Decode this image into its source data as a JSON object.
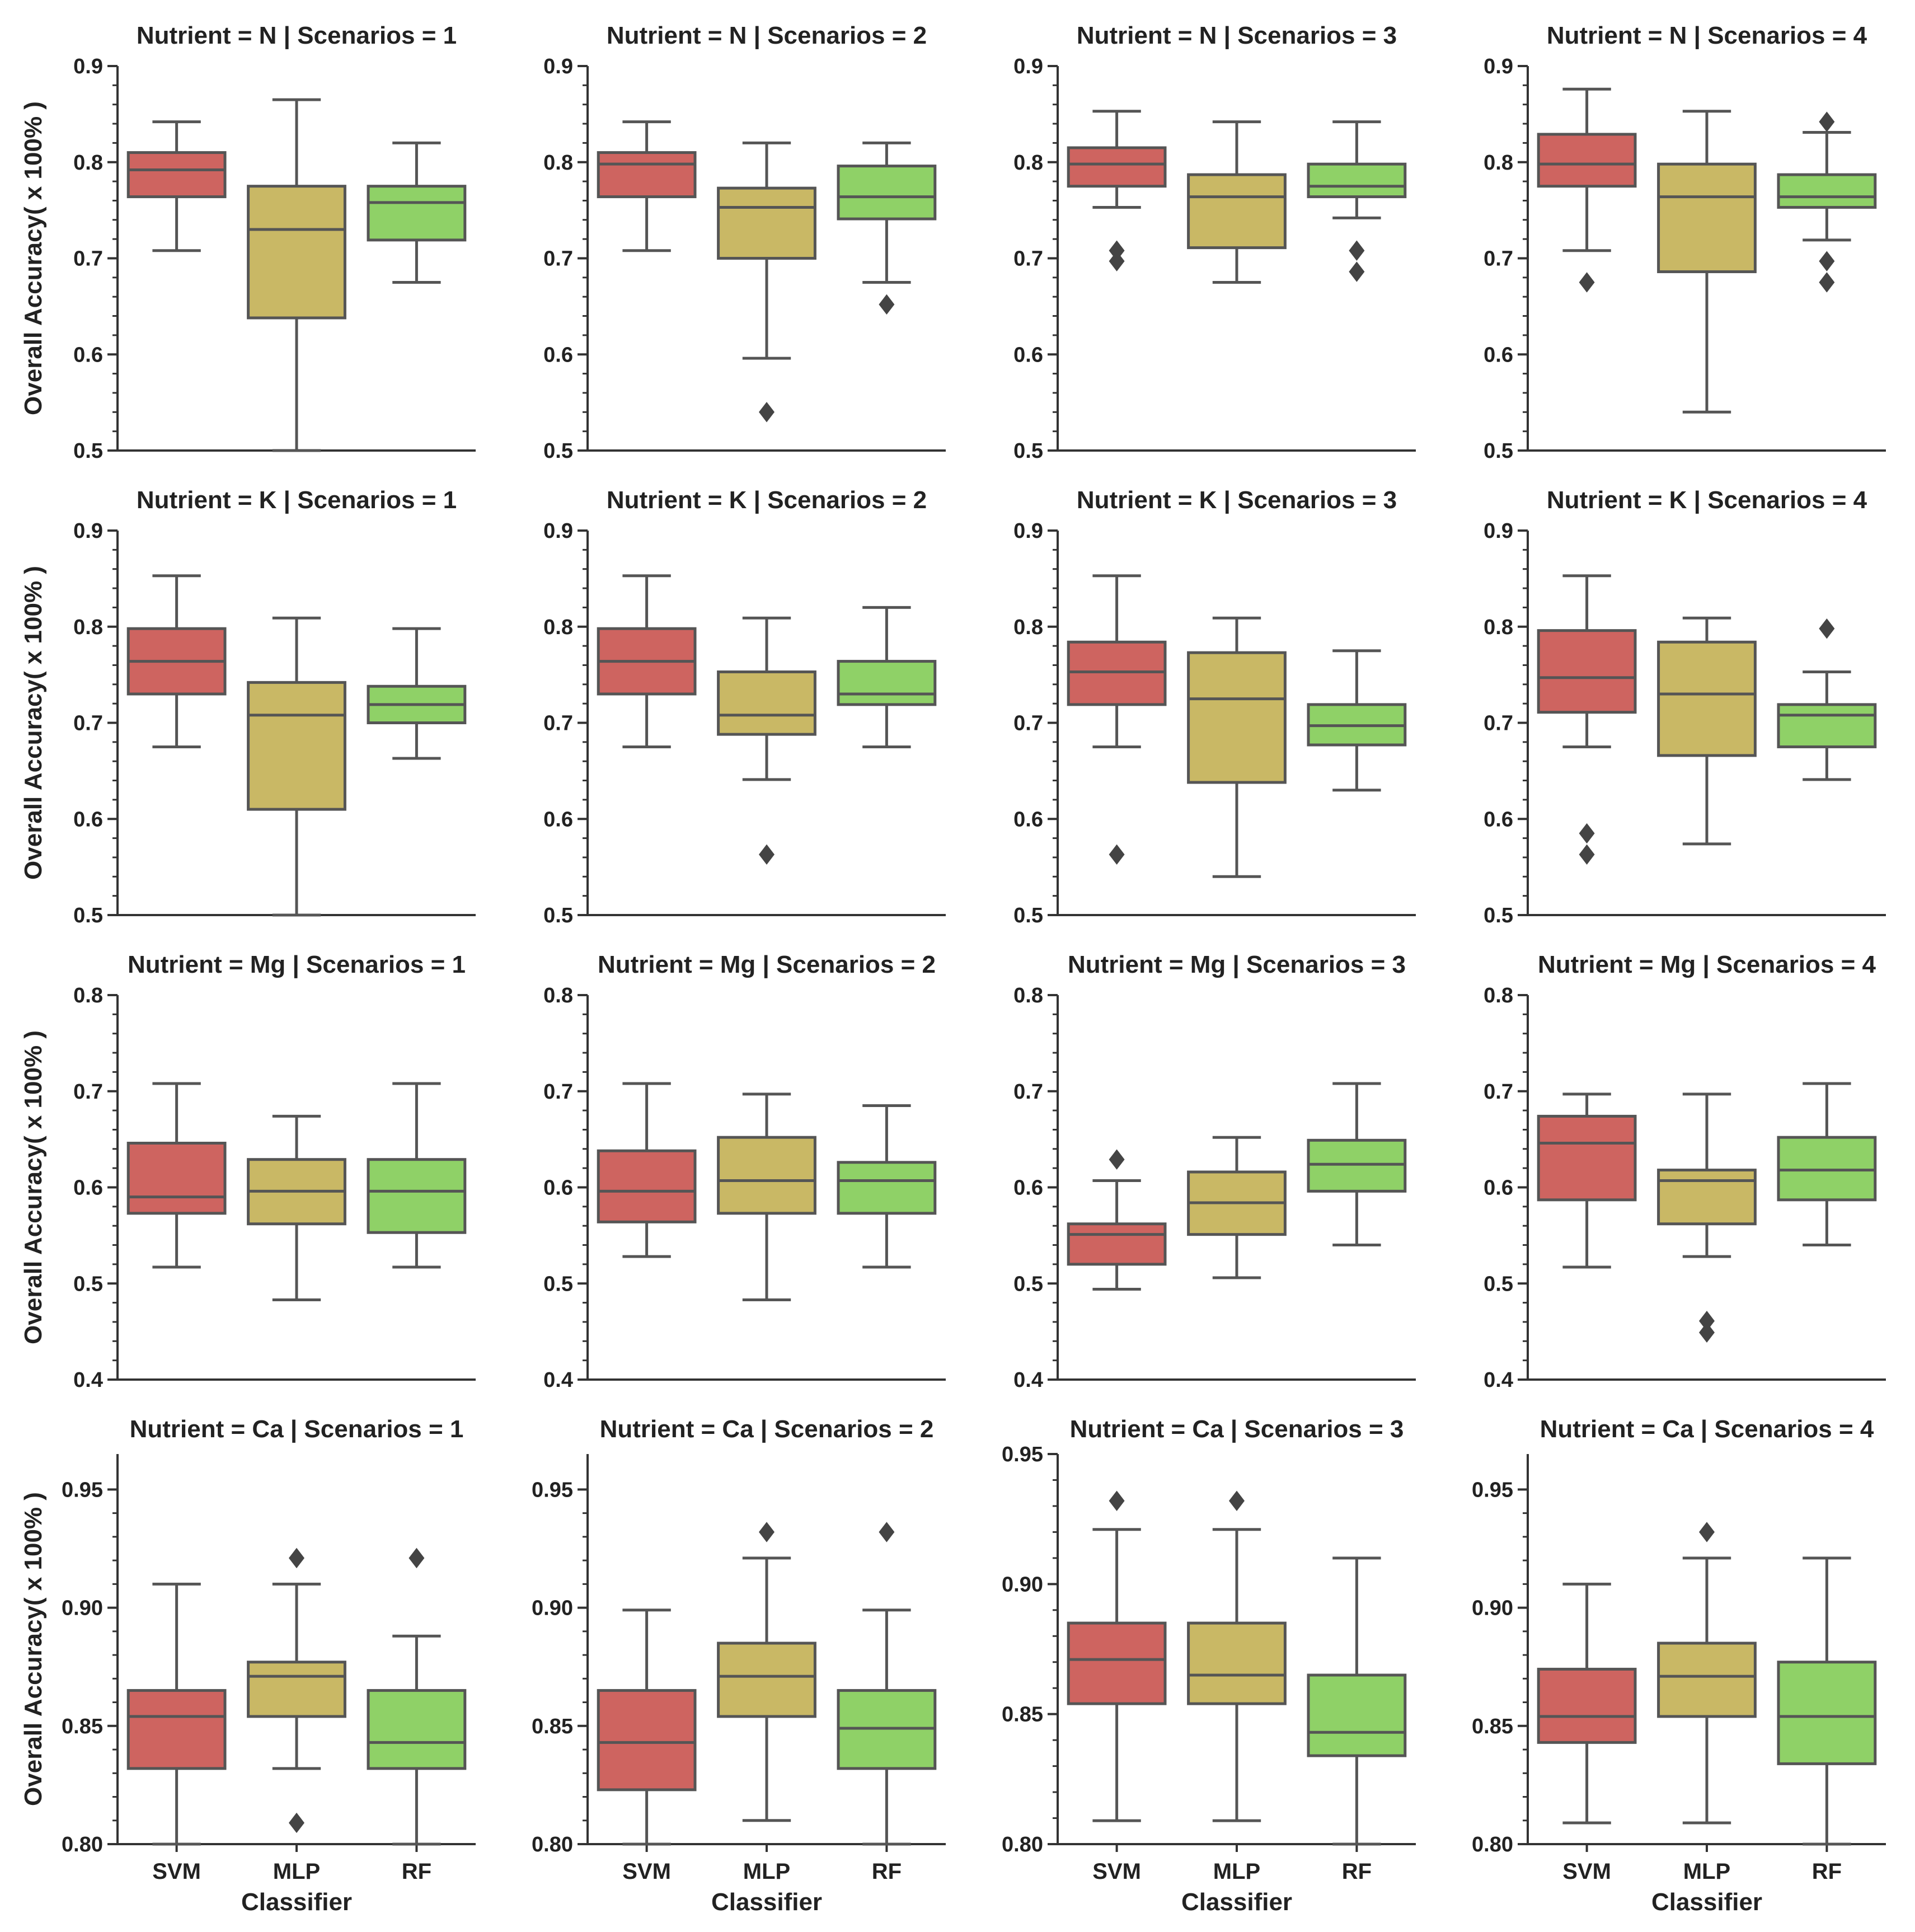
{
  "figure": {
    "ylabel": "Overall Accuracy( x 100% )",
    "xlabel": "Classifier"
  },
  "colors": {
    "SVM": "#ce6460",
    "MLP": "#c9b865",
    "RF": "#8fd167",
    "line": "#555555"
  },
  "chart_data": [
    {
      "type": "box",
      "title": "Nutrient = N | Scenarios = 1",
      "xlabel": "",
      "ylabel": "Overall Accuracy( x 100% )",
      "categories": [
        "SVM",
        "MLP",
        "RF"
      ],
      "ylim": [
        0.5,
        0.9
      ],
      "yticks": [
        "0.5",
        "0.6",
        "0.7",
        "0.8",
        "0.9"
      ],
      "minor_ticks": true,
      "boxes": [
        {
          "whislo": 0.708,
          "q1": 0.764,
          "median": 0.792,
          "q3": 0.81,
          "whishi": 0.842,
          "fliers": []
        },
        {
          "whislo": 0.5,
          "q1": 0.638,
          "median": 0.73,
          "q3": 0.775,
          "whishi": 0.865,
          "fliers": []
        },
        {
          "whislo": 0.675,
          "q1": 0.719,
          "median": 0.758,
          "q3": 0.775,
          "whishi": 0.82,
          "fliers": []
        }
      ]
    },
    {
      "type": "box",
      "title": "Nutrient = N | Scenarios = 2",
      "xlabel": "",
      "ylabel": "",
      "categories": [
        "SVM",
        "MLP",
        "RF"
      ],
      "ylim": [
        0.5,
        0.9
      ],
      "yticks": [
        "0.5",
        "0.6",
        "0.7",
        "0.8",
        "0.9"
      ],
      "minor_ticks": true,
      "boxes": [
        {
          "whislo": 0.708,
          "q1": 0.764,
          "median": 0.798,
          "q3": 0.81,
          "whishi": 0.842,
          "fliers": []
        },
        {
          "whislo": 0.596,
          "q1": 0.7,
          "median": 0.753,
          "q3": 0.773,
          "whishi": 0.82,
          "fliers": [
            0.54
          ]
        },
        {
          "whislo": 0.675,
          "q1": 0.741,
          "median": 0.764,
          "q3": 0.796,
          "whishi": 0.82,
          "fliers": [
            0.652
          ]
        }
      ]
    },
    {
      "type": "box",
      "title": "Nutrient = N | Scenarios = 3",
      "xlabel": "",
      "ylabel": "",
      "categories": [
        "SVM",
        "MLP",
        "RF"
      ],
      "ylim": [
        0.5,
        0.9
      ],
      "yticks": [
        "0.5",
        "0.6",
        "0.7",
        "0.8",
        "0.9"
      ],
      "minor_ticks": true,
      "boxes": [
        {
          "whislo": 0.753,
          "q1": 0.775,
          "median": 0.798,
          "q3": 0.815,
          "whishi": 0.853,
          "fliers": [
            0.708,
            0.697
          ]
        },
        {
          "whislo": 0.675,
          "q1": 0.711,
          "median": 0.764,
          "q3": 0.787,
          "whishi": 0.842,
          "fliers": []
        },
        {
          "whislo": 0.742,
          "q1": 0.764,
          "median": 0.775,
          "q3": 0.798,
          "whishi": 0.842,
          "fliers": [
            0.708,
            0.686
          ]
        }
      ]
    },
    {
      "type": "box",
      "title": "Nutrient = N | Scenarios = 4",
      "xlabel": "",
      "ylabel": "",
      "categories": [
        "SVM",
        "MLP",
        "RF"
      ],
      "ylim": [
        0.5,
        0.9
      ],
      "yticks": [
        "0.5",
        "0.6",
        "0.7",
        "0.8",
        "0.9"
      ],
      "minor_ticks": true,
      "boxes": [
        {
          "whislo": 0.708,
          "q1": 0.775,
          "median": 0.798,
          "q3": 0.829,
          "whishi": 0.876,
          "fliers": [
            0.675
          ]
        },
        {
          "whislo": 0.54,
          "q1": 0.686,
          "median": 0.764,
          "q3": 0.798,
          "whishi": 0.853,
          "fliers": []
        },
        {
          "whislo": 0.719,
          "q1": 0.753,
          "median": 0.764,
          "q3": 0.787,
          "whishi": 0.831,
          "fliers": [
            0.842,
            0.697,
            0.675
          ]
        }
      ]
    },
    {
      "type": "box",
      "title": "Nutrient = K | Scenarios = 1",
      "xlabel": "",
      "ylabel": "Overall Accuracy( x 100% )",
      "categories": [
        "SVM",
        "MLP",
        "RF"
      ],
      "ylim": [
        0.5,
        0.9
      ],
      "yticks": [
        "0.5",
        "0.6",
        "0.7",
        "0.8",
        "0.9"
      ],
      "minor_ticks": true,
      "boxes": [
        {
          "whislo": 0.675,
          "q1": 0.73,
          "median": 0.764,
          "q3": 0.798,
          "whishi": 0.853,
          "fliers": []
        },
        {
          "whislo": 0.5,
          "q1": 0.61,
          "median": 0.708,
          "q3": 0.742,
          "whishi": 0.809,
          "fliers": []
        },
        {
          "whislo": 0.663,
          "q1": 0.7,
          "median": 0.719,
          "q3": 0.738,
          "whishi": 0.798,
          "fliers": []
        }
      ]
    },
    {
      "type": "box",
      "title": "Nutrient = K | Scenarios = 2",
      "xlabel": "",
      "ylabel": "",
      "categories": [
        "SVM",
        "MLP",
        "RF"
      ],
      "ylim": [
        0.5,
        0.9
      ],
      "yticks": [
        "0.5",
        "0.6",
        "0.7",
        "0.8",
        "0.9"
      ],
      "minor_ticks": true,
      "boxes": [
        {
          "whislo": 0.675,
          "q1": 0.73,
          "median": 0.764,
          "q3": 0.798,
          "whishi": 0.853,
          "fliers": []
        },
        {
          "whislo": 0.641,
          "q1": 0.688,
          "median": 0.708,
          "q3": 0.753,
          "whishi": 0.809,
          "fliers": [
            0.563
          ]
        },
        {
          "whislo": 0.675,
          "q1": 0.719,
          "median": 0.73,
          "q3": 0.764,
          "whishi": 0.82,
          "fliers": []
        }
      ]
    },
    {
      "type": "box",
      "title": "Nutrient = K | Scenarios = 3",
      "xlabel": "",
      "ylabel": "",
      "categories": [
        "SVM",
        "MLP",
        "RF"
      ],
      "ylim": [
        0.5,
        0.9
      ],
      "yticks": [
        "0.5",
        "0.6",
        "0.7",
        "0.8",
        "0.9"
      ],
      "minor_ticks": true,
      "boxes": [
        {
          "whislo": 0.675,
          "q1": 0.719,
          "median": 0.753,
          "q3": 0.784,
          "whishi": 0.853,
          "fliers": [
            0.563
          ]
        },
        {
          "whislo": 0.54,
          "q1": 0.638,
          "median": 0.725,
          "q3": 0.773,
          "whishi": 0.809,
          "fliers": []
        },
        {
          "whislo": 0.63,
          "q1": 0.677,
          "median": 0.697,
          "q3": 0.719,
          "whishi": 0.775,
          "fliers": []
        }
      ]
    },
    {
      "type": "box",
      "title": "Nutrient = K | Scenarios = 4",
      "xlabel": "",
      "ylabel": "",
      "categories": [
        "SVM",
        "MLP",
        "RF"
      ],
      "ylim": [
        0.5,
        0.9
      ],
      "yticks": [
        "0.5",
        "0.6",
        "0.7",
        "0.8",
        "0.9"
      ],
      "minor_ticks": true,
      "boxes": [
        {
          "whislo": 0.675,
          "q1": 0.711,
          "median": 0.747,
          "q3": 0.796,
          "whishi": 0.853,
          "fliers": [
            0.585,
            0.563
          ]
        },
        {
          "whislo": 0.574,
          "q1": 0.666,
          "median": 0.73,
          "q3": 0.784,
          "whishi": 0.809,
          "fliers": []
        },
        {
          "whislo": 0.641,
          "q1": 0.675,
          "median": 0.708,
          "q3": 0.719,
          "whishi": 0.753,
          "fliers": [
            0.798
          ]
        }
      ]
    },
    {
      "type": "box",
      "title": "Nutrient = Mg | Scenarios = 1",
      "xlabel": "",
      "ylabel": "Overall Accuracy( x 100% )",
      "categories": [
        "SVM",
        "MLP",
        "RF"
      ],
      "ylim": [
        0.4,
        0.8
      ],
      "yticks": [
        "0.4",
        "0.5",
        "0.6",
        "0.7",
        "0.8"
      ],
      "minor_ticks": true,
      "boxes": [
        {
          "whislo": 0.517,
          "q1": 0.573,
          "median": 0.59,
          "q3": 0.646,
          "whishi": 0.708,
          "fliers": []
        },
        {
          "whislo": 0.483,
          "q1": 0.562,
          "median": 0.596,
          "q3": 0.629,
          "whishi": 0.674,
          "fliers": []
        },
        {
          "whislo": 0.517,
          "q1": 0.553,
          "median": 0.596,
          "q3": 0.629,
          "whishi": 0.708,
          "fliers": []
        }
      ]
    },
    {
      "type": "box",
      "title": "Nutrient = Mg | Scenarios = 2",
      "xlabel": "",
      "ylabel": "",
      "categories": [
        "SVM",
        "MLP",
        "RF"
      ],
      "ylim": [
        0.4,
        0.8
      ],
      "yticks": [
        "0.4",
        "0.5",
        "0.6",
        "0.7",
        "0.8"
      ],
      "minor_ticks": true,
      "boxes": [
        {
          "whislo": 0.528,
          "q1": 0.564,
          "median": 0.596,
          "q3": 0.638,
          "whishi": 0.708,
          "fliers": []
        },
        {
          "whislo": 0.483,
          "q1": 0.573,
          "median": 0.607,
          "q3": 0.652,
          "whishi": 0.697,
          "fliers": []
        },
        {
          "whislo": 0.517,
          "q1": 0.573,
          "median": 0.607,
          "q3": 0.626,
          "whishi": 0.685,
          "fliers": []
        }
      ]
    },
    {
      "type": "box",
      "title": "Nutrient = Mg | Scenarios = 3",
      "xlabel": "",
      "ylabel": "",
      "categories": [
        "SVM",
        "MLP",
        "RF"
      ],
      "ylim": [
        0.4,
        0.8
      ],
      "yticks": [
        "0.4",
        "0.5",
        "0.6",
        "0.7",
        "0.8"
      ],
      "minor_ticks": true,
      "boxes": [
        {
          "whislo": 0.494,
          "q1": 0.52,
          "median": 0.551,
          "q3": 0.562,
          "whishi": 0.607,
          "fliers": [
            0.629
          ]
        },
        {
          "whislo": 0.506,
          "q1": 0.551,
          "median": 0.584,
          "q3": 0.616,
          "whishi": 0.652,
          "fliers": []
        },
        {
          "whislo": 0.54,
          "q1": 0.596,
          "median": 0.624,
          "q3": 0.649,
          "whishi": 0.708,
          "fliers": []
        }
      ]
    },
    {
      "type": "box",
      "title": "Nutrient = Mg | Scenarios = 4",
      "xlabel": "",
      "ylabel": "",
      "categories": [
        "SVM",
        "MLP",
        "RF"
      ],
      "ylim": [
        0.4,
        0.8
      ],
      "yticks": [
        "0.4",
        "0.5",
        "0.6",
        "0.7",
        "0.8"
      ],
      "minor_ticks": true,
      "boxes": [
        {
          "whislo": 0.517,
          "q1": 0.587,
          "median": 0.646,
          "q3": 0.674,
          "whishi": 0.697,
          "fliers": []
        },
        {
          "whislo": 0.528,
          "q1": 0.562,
          "median": 0.607,
          "q3": 0.618,
          "whishi": 0.697,
          "fliers": [
            0.461,
            0.449
          ]
        },
        {
          "whislo": 0.54,
          "q1": 0.587,
          "median": 0.618,
          "q3": 0.652,
          "whishi": 0.708,
          "fliers": []
        }
      ]
    },
    {
      "type": "box",
      "title": "Nutrient = Ca | Scenarios = 1",
      "xlabel": "Classifier",
      "ylabel": "Overall Accuracy( x 100% )",
      "categories": [
        "SVM",
        "MLP",
        "RF"
      ],
      "ylim": [
        0.8,
        0.965
      ],
      "yticks": [
        "0.80",
        "0.85",
        "0.90",
        "0.95"
      ],
      "minor_ticks": true,
      "boxes": [
        {
          "whislo": 0.8,
          "q1": 0.832,
          "median": 0.854,
          "q3": 0.865,
          "whishi": 0.91,
          "fliers": []
        },
        {
          "whislo": 0.832,
          "q1": 0.854,
          "median": 0.871,
          "q3": 0.877,
          "whishi": 0.91,
          "fliers": [
            0.921,
            0.809
          ]
        },
        {
          "whislo": 0.8,
          "q1": 0.832,
          "median": 0.843,
          "q3": 0.865,
          "whishi": 0.888,
          "fliers": [
            0.921
          ]
        }
      ]
    },
    {
      "type": "box",
      "title": "Nutrient = Ca | Scenarios = 2",
      "xlabel": "Classifier",
      "ylabel": "",
      "categories": [
        "SVM",
        "MLP",
        "RF"
      ],
      "ylim": [
        0.8,
        0.965
      ],
      "yticks": [
        "0.80",
        "0.85",
        "0.90",
        "0.95"
      ],
      "minor_ticks": true,
      "boxes": [
        {
          "whislo": 0.8,
          "q1": 0.823,
          "median": 0.843,
          "q3": 0.865,
          "whishi": 0.899,
          "fliers": []
        },
        {
          "whislo": 0.81,
          "q1": 0.854,
          "median": 0.871,
          "q3": 0.885,
          "whishi": 0.921,
          "fliers": [
            0.932
          ]
        },
        {
          "whislo": 0.8,
          "q1": 0.832,
          "median": 0.849,
          "q3": 0.865,
          "whishi": 0.899,
          "fliers": [
            0.932
          ]
        }
      ]
    },
    {
      "type": "box",
      "title": "Nutrient = Ca | Scenarios = 3",
      "xlabel": "Classifier",
      "ylabel": "",
      "categories": [
        "SVM",
        "MLP",
        "RF"
      ],
      "ylim": [
        0.8,
        0.95
      ],
      "yticks": [
        "0.80",
        "0.85",
        "0.90",
        "0.95"
      ],
      "minor_ticks": true,
      "boxes": [
        {
          "whislo": 0.809,
          "q1": 0.854,
          "median": 0.871,
          "q3": 0.885,
          "whishi": 0.921,
          "fliers": [
            0.932
          ]
        },
        {
          "whislo": 0.809,
          "q1": 0.854,
          "median": 0.865,
          "q3": 0.885,
          "whishi": 0.921,
          "fliers": [
            0.932
          ]
        },
        {
          "whislo": 0.8,
          "q1": 0.834,
          "median": 0.843,
          "q3": 0.865,
          "whishi": 0.91,
          "fliers": []
        }
      ]
    },
    {
      "type": "box",
      "title": "Nutrient = Ca | Scenarios = 4",
      "xlabel": "Classifier",
      "ylabel": "",
      "categories": [
        "SVM",
        "MLP",
        "RF"
      ],
      "ylim": [
        0.8,
        0.965
      ],
      "yticks": [
        "0.80",
        "0.85",
        "0.90",
        "0.95"
      ],
      "minor_ticks": true,
      "boxes": [
        {
          "whislo": 0.809,
          "q1": 0.843,
          "median": 0.854,
          "q3": 0.874,
          "whishi": 0.91,
          "fliers": []
        },
        {
          "whislo": 0.809,
          "q1": 0.854,
          "median": 0.871,
          "q3": 0.885,
          "whishi": 0.921,
          "fliers": [
            0.932
          ]
        },
        {
          "whislo": 0.8,
          "q1": 0.834,
          "median": 0.854,
          "q3": 0.877,
          "whishi": 0.921,
          "fliers": []
        }
      ]
    }
  ]
}
